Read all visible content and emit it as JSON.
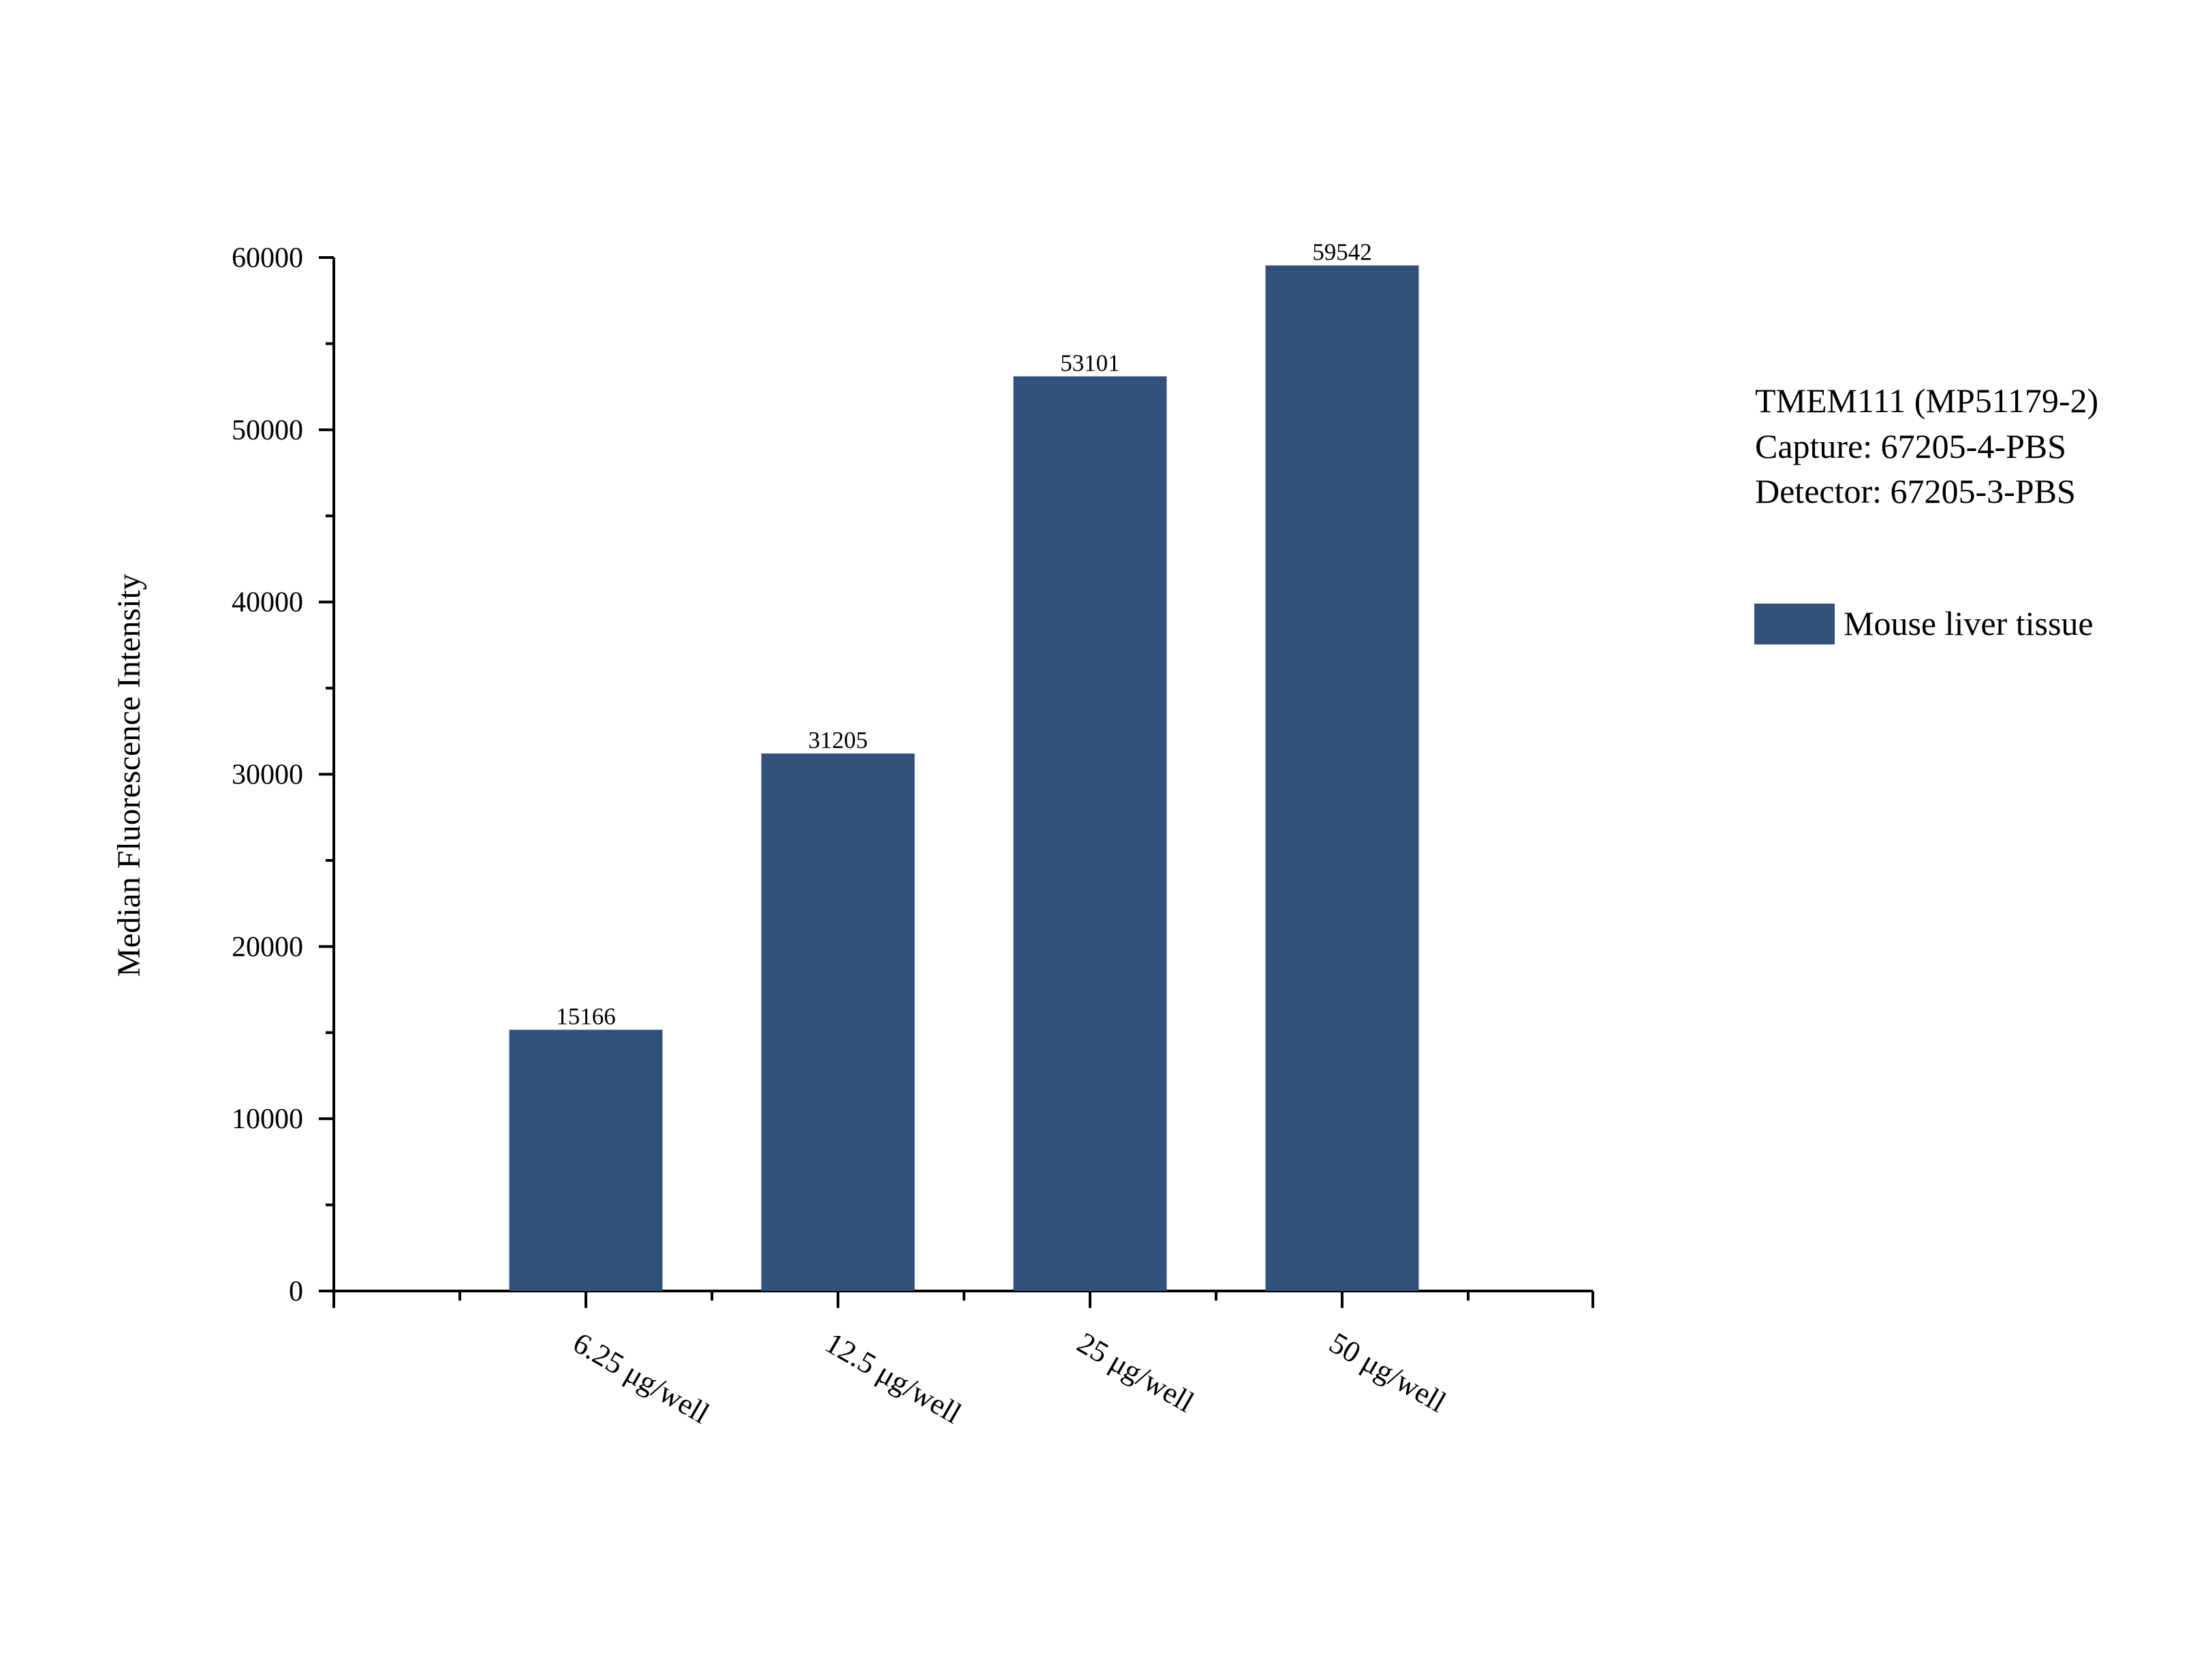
{
  "chart_data": {
    "type": "bar",
    "categories": [
      "6.25 μg/well",
      "12.5 μg/well",
      "25 μg/well",
      "50 μg/well"
    ],
    "series": [
      {
        "name": "Mouse liver tissue",
        "values": [
          15166,
          31205,
          53101,
          59542
        ],
        "color": "#31507b"
      }
    ],
    "data_labels": [
      "15166",
      "31205",
      "53101",
      "59542"
    ],
    "xlabel": "",
    "ylabel": "Median Fluorescence Intensity",
    "ylim": [
      0,
      60000
    ],
    "yticks": [
      0,
      10000,
      20000,
      30000,
      40000,
      50000,
      60000
    ],
    "ytick_labels": [
      "0",
      "10000",
      "20000",
      "30000",
      "40000",
      "50000",
      "60000"
    ],
    "grid": false,
    "legend_position": "right",
    "annotation_lines": [
      "TMEM111 (MP51179-2)",
      "Capture: 67205-4-PBS",
      "Detector: 67205-3-PBS"
    ]
  }
}
